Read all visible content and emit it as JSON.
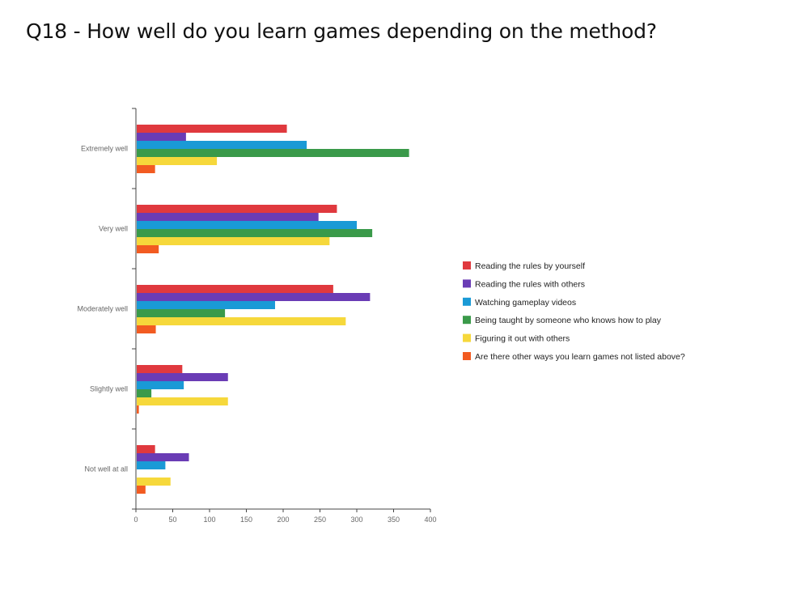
{
  "title": "Q18 - How well do you learn games depending on the method?",
  "chart_data": {
    "type": "bar",
    "orientation": "horizontal",
    "title": "",
    "xlabel": "",
    "ylabel": "",
    "categories": [
      "Extremely well",
      "Very well",
      "Moderately well",
      "Slightly well",
      "Not well at all"
    ],
    "xlim": [
      0,
      400
    ],
    "ticks": [
      0,
      50,
      100,
      150,
      200,
      250,
      300,
      350,
      400
    ],
    "grid": false,
    "legend_position": "right",
    "series": [
      {
        "name": "Reading the rules by yourself",
        "color": "#e0393e",
        "values": [
          205,
          273,
          268,
          63,
          26
        ]
      },
      {
        "name": "Reading the rules with others",
        "color": "#6a3cb5",
        "values": [
          68,
          248,
          318,
          125,
          72
        ]
      },
      {
        "name": "Watching gameplay videos",
        "color": "#1a9ad6",
        "values": [
          232,
          300,
          189,
          65,
          40
        ]
      },
      {
        "name": "Being taught by someone who knows how to play",
        "color": "#3a9a4a",
        "values": [
          371,
          321,
          121,
          21,
          0
        ]
      },
      {
        "name": "Figuring it out with others",
        "color": "#f6d83b",
        "values": [
          110,
          263,
          285,
          125,
          47
        ]
      },
      {
        "name": "Are there other ways you learn games not listed above?",
        "color": "#f25b21",
        "values": [
          26,
          31,
          27,
          4,
          13
        ]
      }
    ]
  }
}
